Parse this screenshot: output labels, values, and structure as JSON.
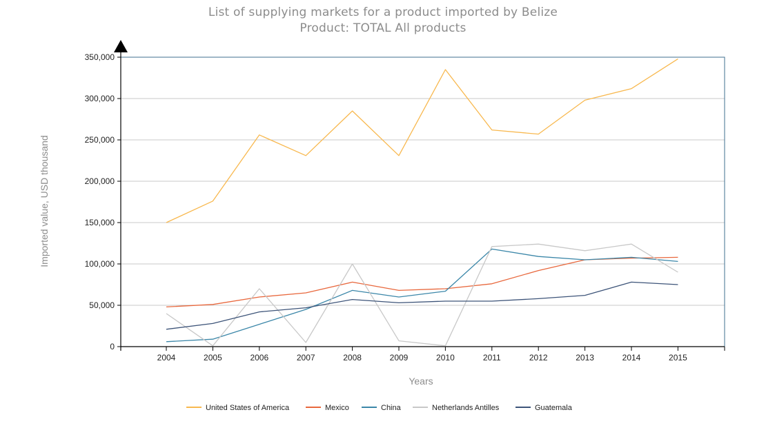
{
  "header": {
    "title": "List of supplying markets for a product imported by Belize",
    "subtitle": "Product: TOTAL All products"
  },
  "chart_data": {
    "type": "line",
    "title": "List of supplying markets for a product imported by Belize",
    "subtitle": "Product: TOTAL All products",
    "xlabel": "Years",
    "ylabel": "Imported value, USD thousand",
    "ylim": [
      0,
      350000
    ],
    "yticks": [
      0,
      50000,
      100000,
      150000,
      200000,
      250000,
      300000,
      350000
    ],
    "ytick_labels": [
      "0",
      "50,000",
      "100,000",
      "150,000",
      "200,000",
      "250,000",
      "300,000",
      "350,000"
    ],
    "grid": true,
    "legend_position": "bottom",
    "x": [
      "2004",
      "2005",
      "2006",
      "2007",
      "2008",
      "2009",
      "2010",
      "2011",
      "2012",
      "2013",
      "2014",
      "2015"
    ],
    "series": [
      {
        "name": "United States of America",
        "color": "#f8b84e",
        "values": [
          150000,
          176000,
          256000,
          231000,
          285000,
          231000,
          335000,
          262000,
          257000,
          298000,
          312000,
          348000
        ]
      },
      {
        "name": "Mexico",
        "color": "#e8673c",
        "values": [
          48000,
          51000,
          60000,
          65000,
          78000,
          68000,
          70000,
          76000,
          92000,
          105000,
          107000,
          108000
        ]
      },
      {
        "name": "China",
        "color": "#3a86a8",
        "values": [
          6000,
          9000,
          27000,
          45000,
          68000,
          60000,
          67000,
          118000,
          109000,
          105000,
          108000,
          103000
        ]
      },
      {
        "name": "Netherlands Antilles",
        "color": "#c8c8c8",
        "values": [
          40000,
          1000,
          70000,
          5000,
          100000,
          7000,
          1000,
          121000,
          124000,
          116000,
          124000,
          90000
        ]
      },
      {
        "name": "Guatemala",
        "color": "#3c5378",
        "values": [
          21000,
          28000,
          42000,
          47000,
          57000,
          53000,
          55000,
          55000,
          58000,
          62000,
          78000,
          75000
        ]
      }
    ]
  }
}
